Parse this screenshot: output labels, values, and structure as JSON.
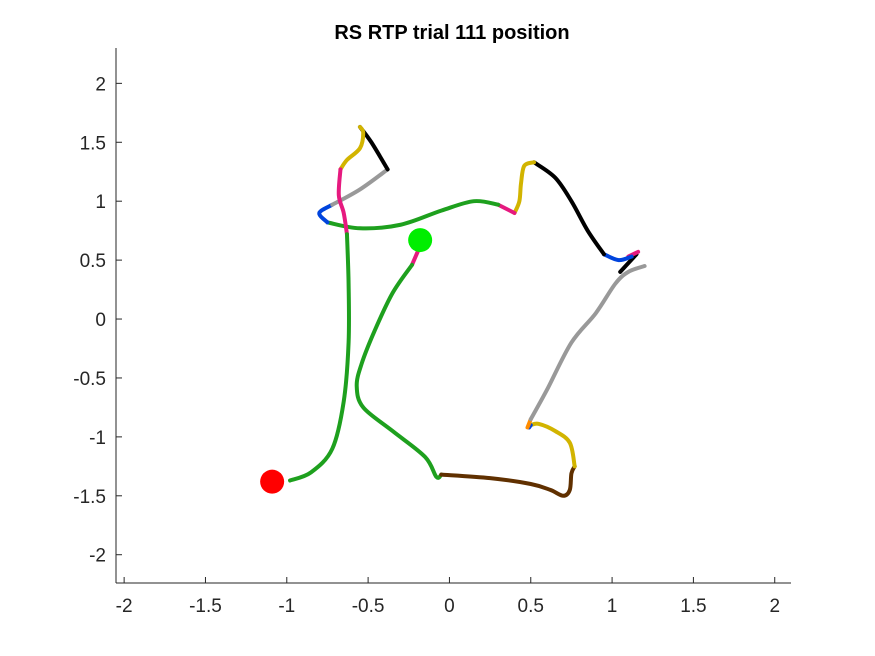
{
  "chart_data": {
    "type": "line",
    "title": "RS  RTP trial 111 position",
    "xlabel": "",
    "ylabel": "",
    "xlim": [
      -2.05,
      2.1
    ],
    "ylim": [
      -2.24,
      2.3
    ],
    "x_ticks": [
      -2,
      -1.5,
      -1,
      -0.5,
      0,
      0.5,
      1,
      1.5,
      2
    ],
    "x_tick_labels": [
      "-2",
      "-1.5",
      "-1",
      "-0.5",
      "0",
      "0.5",
      "1",
      "1.5",
      "2"
    ],
    "y_ticks": [
      2,
      1.5,
      1,
      0.5,
      0,
      -0.5,
      -1,
      -1.5,
      -2
    ],
    "y_tick_labels": [
      "2",
      "1.5",
      "1",
      "0.5",
      "0",
      "-0.5",
      "-1",
      "-1.5",
      "-2"
    ],
    "grid": false,
    "segments": [
      {
        "color": "#e6197f",
        "points": [
          [
            -0.23,
            0.46
          ],
          [
            -0.18,
            0.62
          ]
        ]
      },
      {
        "color": "#1ea01e",
        "points": [
          [
            -0.23,
            0.46
          ],
          [
            -0.35,
            0.22
          ],
          [
            -0.46,
            -0.1
          ],
          [
            -0.54,
            -0.38
          ],
          [
            -0.57,
            -0.57
          ],
          [
            -0.53,
            -0.75
          ],
          [
            -0.35,
            -0.95
          ],
          [
            -0.15,
            -1.17
          ],
          [
            -0.08,
            -1.34
          ],
          [
            -0.05,
            -1.32
          ]
        ]
      },
      {
        "color": "#603000",
        "points": [
          [
            -0.05,
            -1.32
          ],
          [
            0.25,
            -1.35
          ],
          [
            0.5,
            -1.4
          ],
          [
            0.62,
            -1.45
          ],
          [
            0.7,
            -1.5
          ],
          [
            0.74,
            -1.45
          ],
          [
            0.75,
            -1.31
          ],
          [
            0.77,
            -1.25
          ]
        ]
      },
      {
        "color": "#d2b400",
        "points": [
          [
            0.77,
            -1.25
          ],
          [
            0.74,
            -1.05
          ],
          [
            0.65,
            -0.95
          ],
          [
            0.55,
            -0.89
          ],
          [
            0.5,
            -0.9
          ]
        ]
      },
      {
        "color": "#0044dd",
        "points": [
          [
            0.5,
            -0.9
          ],
          [
            0.49,
            -0.92
          ]
        ]
      },
      {
        "color": "#ff8c00",
        "points": [
          [
            0.48,
            -0.92
          ],
          [
            0.5,
            -0.85
          ]
        ]
      },
      {
        "color": "#999999",
        "points": [
          [
            0.5,
            -0.85
          ],
          [
            0.6,
            -0.6
          ],
          [
            0.75,
            -0.2
          ],
          [
            0.9,
            0.05
          ],
          [
            1.02,
            0.3
          ],
          [
            1.1,
            0.4
          ],
          [
            1.2,
            0.45
          ]
        ]
      },
      {
        "color": "#000000",
        "points": [
          [
            1.05,
            0.4
          ],
          [
            1.15,
            0.55
          ]
        ]
      },
      {
        "color": "#e6197f",
        "points": [
          [
            1.1,
            0.53
          ],
          [
            1.16,
            0.57
          ]
        ]
      },
      {
        "color": "#0044dd",
        "points": [
          [
            0.95,
            0.55
          ],
          [
            1.04,
            0.5
          ],
          [
            1.12,
            0.53
          ]
        ]
      },
      {
        "color": "#000000",
        "points": [
          [
            0.95,
            0.55
          ],
          [
            0.85,
            0.75
          ],
          [
            0.75,
            1.0
          ],
          [
            0.65,
            1.2
          ],
          [
            0.52,
            1.33
          ]
        ]
      },
      {
        "color": "#d2b400",
        "points": [
          [
            0.52,
            1.33
          ],
          [
            0.46,
            1.3
          ],
          [
            0.44,
            1.15
          ],
          [
            0.43,
            1.0
          ],
          [
            0.4,
            0.9
          ]
        ]
      },
      {
        "color": "#e6197f",
        "points": [
          [
            0.4,
            0.9
          ],
          [
            0.3,
            0.97
          ]
        ]
      },
      {
        "color": "#1ea01e",
        "points": [
          [
            0.3,
            0.97
          ],
          [
            0.15,
            1.0
          ],
          [
            -0.05,
            0.92
          ],
          [
            -0.3,
            0.8
          ],
          [
            -0.55,
            0.77
          ],
          [
            -0.75,
            0.82
          ]
        ]
      },
      {
        "color": "#0044dd",
        "points": [
          [
            -0.75,
            0.82
          ],
          [
            -0.8,
            0.9
          ],
          [
            -0.72,
            0.97
          ]
        ]
      },
      {
        "color": "#999999",
        "points": [
          [
            -0.72,
            0.97
          ],
          [
            -0.55,
            1.1
          ],
          [
            -0.38,
            1.27
          ]
        ]
      },
      {
        "color": "#000000",
        "points": [
          [
            -0.38,
            1.27
          ],
          [
            -0.48,
            1.5
          ],
          [
            -0.55,
            1.63
          ]
        ]
      },
      {
        "color": "#d2b400",
        "points": [
          [
            -0.55,
            1.63
          ],
          [
            -0.53,
            1.58
          ],
          [
            -0.55,
            1.45
          ],
          [
            -0.63,
            1.35
          ],
          [
            -0.67,
            1.27
          ]
        ]
      },
      {
        "color": "#e6197f",
        "points": [
          [
            -0.67,
            1.27
          ],
          [
            -0.68,
            1.05
          ],
          [
            -0.65,
            0.9
          ],
          [
            -0.63,
            0.72
          ]
        ]
      },
      {
        "color": "#1ea01e",
        "points": [
          [
            -0.63,
            0.72
          ],
          [
            -0.62,
            0.3
          ],
          [
            -0.62,
            -0.2
          ],
          [
            -0.65,
            -0.7
          ],
          [
            -0.72,
            -1.1
          ],
          [
            -0.85,
            -1.3
          ],
          [
            -0.98,
            -1.37
          ]
        ]
      }
    ],
    "markers": [
      {
        "color": "#00ee00",
        "x": -0.18,
        "y": 0.67
      },
      {
        "color": "#ff0000",
        "x": -1.09,
        "y": -1.38
      }
    ]
  }
}
